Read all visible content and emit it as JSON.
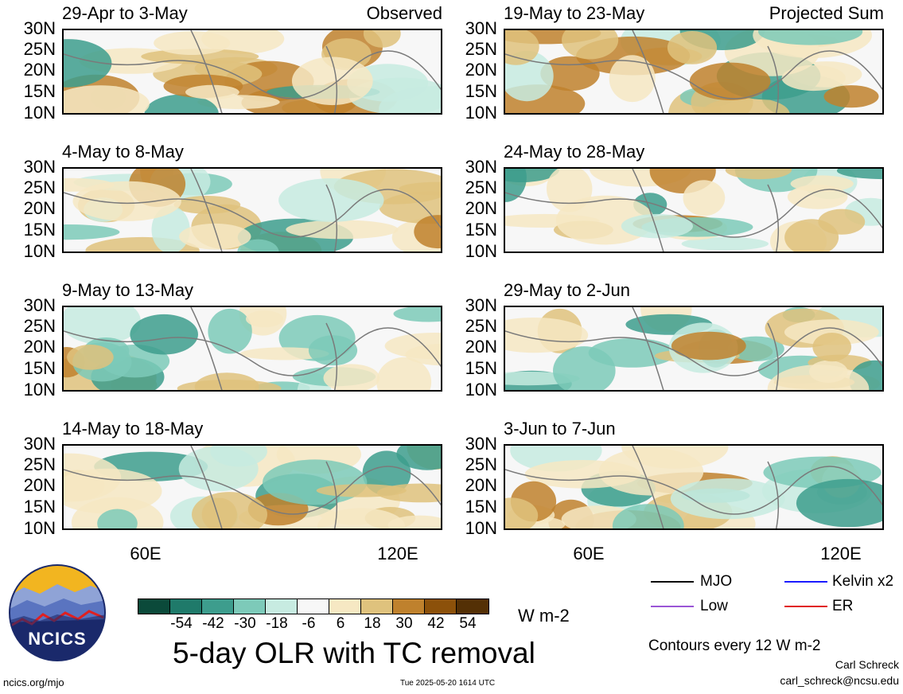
{
  "panels": [
    {
      "title": "29-Apr to 3-May",
      "tag": "Observed"
    },
    {
      "title": "4-May to 8-May",
      "tag": ""
    },
    {
      "title": "9-May to 13-May",
      "tag": ""
    },
    {
      "title": "14-May to 18-May",
      "tag": ""
    },
    {
      "title": "19-May to 23-May",
      "tag": "Projected Sum"
    },
    {
      "title": "24-May to 28-May",
      "tag": ""
    },
    {
      "title": "29-May to 2-Jun",
      "tag": ""
    },
    {
      "title": "3-Jun to 7-Jun",
      "tag": ""
    }
  ],
  "y_ticks": [
    "30N",
    "25N",
    "20N",
    "15N",
    "10N"
  ],
  "x_ticks": [
    "60E",
    "120E"
  ],
  "colorbar": {
    "colors": [
      "#0b4a3a",
      "#1f7a6a",
      "#3d9d8d",
      "#7dcab9",
      "#c7ebe1",
      "#f7f7f7",
      "#f6e8c3",
      "#dfc27d",
      "#bf812d",
      "#8c510a",
      "#543005"
    ],
    "ticks": [
      "-54",
      "-42",
      "-30",
      "-18",
      "-6",
      "6",
      "18",
      "30",
      "42",
      "54"
    ],
    "units": "W m-2"
  },
  "title": "5-day OLR with TC removal",
  "legend": [
    {
      "label": "MJO",
      "color": "#000000"
    },
    {
      "label": "Kelvin x2",
      "color": "#1a1aff"
    },
    {
      "label": "Low",
      "color": "#9a55d6"
    },
    {
      "label": "ER",
      "color": "#e02020"
    }
  ],
  "contour_note": "Contours every 12 W m-2",
  "logo_text": "NCICS",
  "footer_left": "ncics.org/mjo",
  "footer_center": "Tue 2025-05-20 1614 UTC",
  "author": "Carl Schreck",
  "email": "carl_schreck@ncsu.edu"
}
